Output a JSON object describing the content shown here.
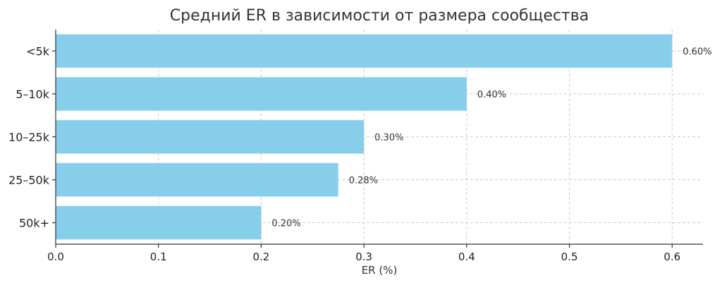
{
  "chart_data": {
    "type": "bar",
    "orientation": "horizontal",
    "title": "Средний ER в зависимости от размера сообщества",
    "xlabel": "ER (%)",
    "ylabel": "",
    "categories": [
      "<5k",
      "5–10k",
      "10–25k",
      "25–50k",
      "50k+"
    ],
    "values": [
      0.6,
      0.4,
      0.3,
      0.275,
      0.2
    ],
    "data_labels": [
      "0.60%",
      "0.40%",
      "0.30%",
      "0.28%",
      "0.20%"
    ],
    "xlim": [
      0,
      0.63
    ],
    "x_ticks": [
      0.0,
      0.1,
      0.2,
      0.3,
      0.4,
      0.5,
      0.6
    ],
    "x_tick_labels": [
      "0.0",
      "0.1",
      "0.2",
      "0.3",
      "0.4",
      "0.5",
      "0.6"
    ],
    "grid": true,
    "bar_color": "#87ceeb"
  }
}
